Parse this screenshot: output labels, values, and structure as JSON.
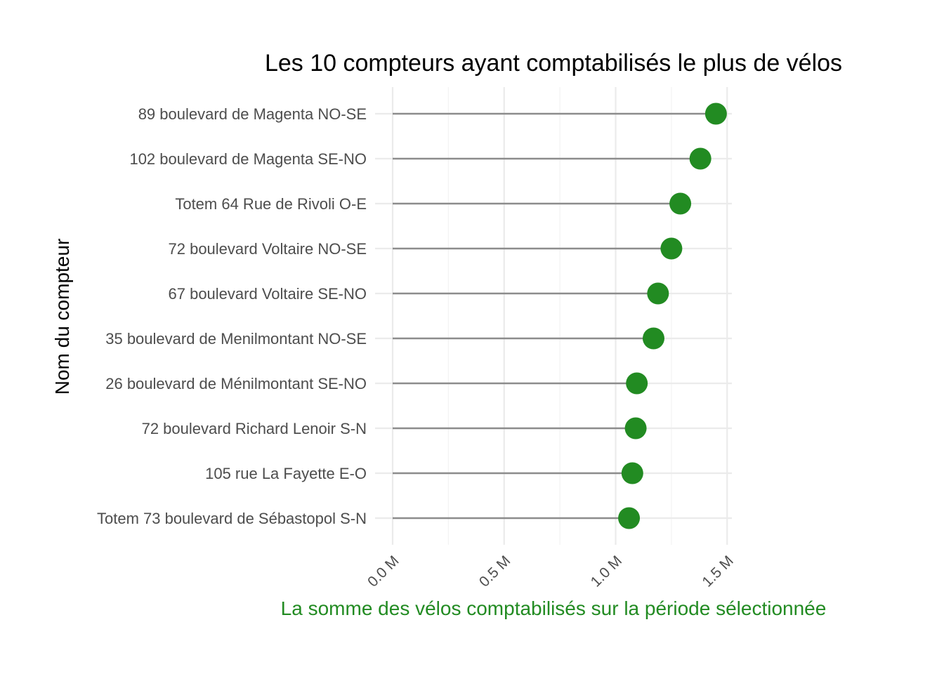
{
  "chart_data": {
    "type": "lollipop",
    "title": "Les 10 compteurs ayant comptabilisés le plus de vélos",
    "xlabel": "La somme des vélos comptabilisés sur la période sélectionnée",
    "ylabel": "Nom du compteur",
    "xlim": [
      0,
      1.52
    ],
    "x_ticks": [
      0,
      0.5,
      1.0,
      1.5
    ],
    "x_tick_labels": [
      "0.0 M",
      "0.5 M",
      "1.0 M",
      "1.5 M"
    ],
    "x_unit": "M",
    "categories": [
      "89 boulevard de Magenta NO-SE",
      "102 boulevard de Magenta SE-NO",
      "Totem 64 Rue de Rivoli O-E",
      "72 boulevard Voltaire NO-SE",
      "67 boulevard Voltaire SE-NO",
      "35 boulevard de Menilmontant NO-SE",
      "26 boulevard de Ménilmontant SE-NO",
      "72 boulevard Richard Lenoir  S-N",
      "105 rue La Fayette E-O",
      "Totem 73 boulevard de Sébastopol S-N"
    ],
    "values": [
      1.45,
      1.38,
      1.29,
      1.25,
      1.19,
      1.17,
      1.095,
      1.09,
      1.075,
      1.06
    ],
    "grid": true,
    "legend": "none",
    "colors": {
      "point": "#228b22",
      "stem": "#8c8c8c",
      "grid_major": "#ebebeb",
      "grid_minor": "#f3f3f3",
      "xlabel": "#228b22"
    }
  }
}
